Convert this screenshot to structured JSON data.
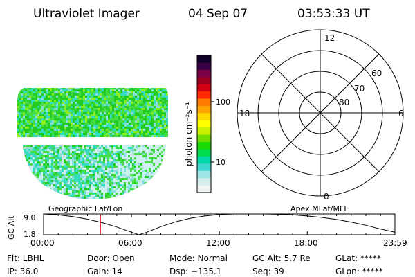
{
  "header": {
    "instrument": "Ultraviolet Imager",
    "date": "04 Sep 07",
    "time": "03:53:33 UT"
  },
  "colorbar": {
    "unit_label": "photon cm⁻²s⁻¹",
    "tick_labels": [
      "100",
      "10"
    ],
    "colors": [
      "#10002a",
      "#3a0044",
      "#7a0048",
      "#a00020",
      "#d20010",
      "#ff2a00",
      "#ff7a00",
      "#ffa400",
      "#ffd800",
      "#ffff00",
      "#c8f000",
      "#70e000",
      "#18dc00",
      "#00dc50",
      "#00d8a8",
      "#3cd8d0",
      "#9ee6e6",
      "#d4eeee",
      "#f0f4f4"
    ]
  },
  "image_panel": {
    "dominant_colors": [
      "#22cc22",
      "#44dd44",
      "#88ee22",
      "#33ddbb",
      "#88dddd",
      "#cceeee"
    ]
  },
  "polar_plot": {
    "time_labels": [
      "12",
      "6",
      "18",
      "0"
    ],
    "latitude_labels": [
      "60",
      "70",
      "80"
    ]
  },
  "orbit": {
    "ylabel": "GC Alt",
    "ytick_labels": [
      "9.0",
      "1.8"
    ],
    "left_title": "Geographic Lat/Lon",
    "right_title": "Apex  MLat/MLT",
    "xtick_labels": [
      "00:00",
      "06:00",
      "12:00",
      "18:00",
      "23:59"
    ],
    "current_marker_color": "#dd0000"
  },
  "info": {
    "flt": "Flt: LBHL",
    "door": "Door: Open",
    "mode": "Mode: Normal",
    "gc_alt": "GC Alt: 5.7 Re",
    "glat": "GLat: *****",
    "ip": "IP: 36.0",
    "gain": "Gain: 14",
    "dsp": "Dsp: −135.1",
    "seq": "Seq: 39",
    "glon": "GLon: *****"
  },
  "chart_data": {
    "type": "line",
    "title": "",
    "xlabel": "",
    "ylabel": "GC Alt",
    "x_tick_labels": [
      "00:00",
      "06:00",
      "12:00",
      "18:00",
      "23:59"
    ],
    "y_tick_labels": [
      "9.0",
      "1.8"
    ],
    "ylim": [
      1.8,
      9.0
    ],
    "series": [
      {
        "x": [
          "00:00",
          "01:00",
          "02:00",
          "03:00",
          "04:00",
          "05:00",
          "06:00",
          "06:30",
          "07:00",
          "08:00",
          "09:00",
          "10:00",
          "11:00",
          "12:00",
          "13:00",
          "14:00",
          "15:00",
          "16:00",
          "17:00",
          "18:00",
          "19:00",
          "20:00",
          "21:00",
          "22:00",
          "23:00",
          "23:59"
        ],
        "values": [
          9.0,
          8.7,
          8.1,
          7.2,
          6.0,
          4.5,
          2.7,
          1.8,
          2.6,
          4.6,
          6.3,
          7.5,
          8.3,
          8.8,
          9.0,
          9.0,
          9.0,
          8.9,
          8.7,
          8.3,
          7.8,
          7.1,
          6.2,
          5.1,
          3.8,
          2.7
        ]
      }
    ],
    "current_time": "03:53"
  }
}
